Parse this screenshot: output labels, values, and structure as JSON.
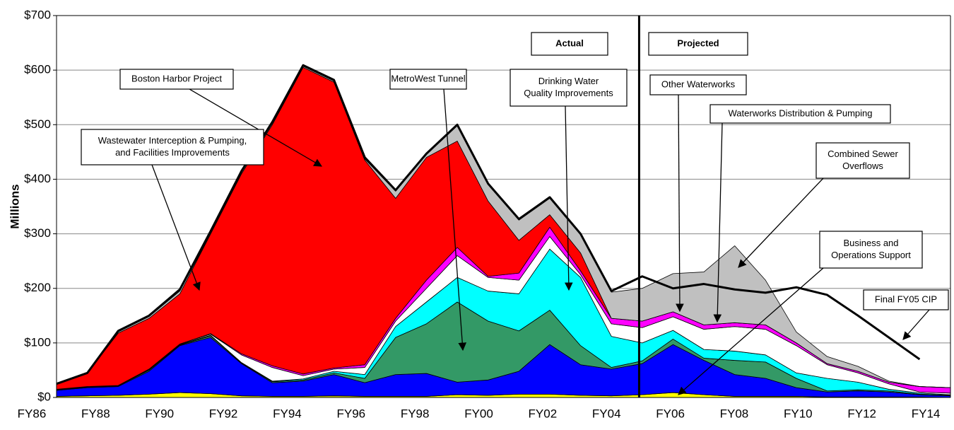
{
  "chart_data": {
    "type": "stacked_area",
    "y_label": "Millions",
    "categories": [
      "FY86",
      null,
      "FY88",
      null,
      "FY90",
      null,
      "FY92",
      null,
      "FY94",
      null,
      "FY96",
      null,
      "FY98",
      null,
      "FY00",
      null,
      "FY02",
      null,
      "FY04",
      null,
      "FY06",
      null,
      "FY08",
      null,
      "FY10",
      null,
      "FY12",
      null,
      "FY14",
      null
    ],
    "ylim": [
      0,
      700
    ],
    "yticks": [
      {
        "value": 0,
        "label": "$0"
      },
      {
        "value": 100,
        "label": "$100"
      },
      {
        "value": 200,
        "label": "$200"
      },
      {
        "value": 300,
        "label": "$300"
      },
      {
        "value": 400,
        "label": "$400"
      },
      {
        "value": 500,
        "label": "$500"
      },
      {
        "value": 600,
        "label": "$600"
      },
      {
        "value": 700,
        "label": "$700"
      }
    ],
    "grid": true,
    "series": [
      {
        "color": "#ffff00",
        "values": [
          2,
          3,
          4,
          6,
          9,
          7,
          3,
          2,
          2,
          3,
          2,
          2,
          2,
          5,
          4,
          6,
          6,
          4,
          3,
          5,
          9,
          5,
          2,
          2,
          2,
          1,
          1,
          1,
          1,
          0
        ]
      },
      {
        "color": "#0000ff",
        "values": [
          11,
          15,
          16,
          42,
          86,
          103,
          59,
          25,
          28,
          39,
          25,
          40,
          42,
          23,
          28,
          42,
          91,
          56,
          49,
          57,
          88,
          63,
          40,
          33,
          16,
          9,
          11,
          9,
          4,
          3
        ]
      },
      {
        "color": "#339966",
        "values": [
          1,
          1,
          1,
          2,
          1,
          3,
          1,
          2,
          2,
          3,
          8,
          68,
          91,
          147,
          108,
          74,
          63,
          35,
          3,
          5,
          10,
          4,
          26,
          30,
          17,
          2,
          2,
          2,
          1,
          1
        ]
      },
      {
        "color": "#00ffff",
        "values": [
          0,
          0,
          0,
          1,
          1,
          1,
          1,
          1,
          2,
          3,
          7,
          20,
          40,
          45,
          55,
          68,
          112,
          125,
          57,
          33,
          16,
          16,
          17,
          13,
          10,
          23,
          14,
          3,
          2,
          1
        ]
      },
      {
        "color": "#ffffff",
        "values": [
          1,
          1,
          1,
          1,
          1,
          2,
          14,
          25,
          6,
          4,
          13,
          10,
          25,
          40,
          25,
          25,
          23,
          5,
          23,
          28,
          25,
          37,
          45,
          47,
          50,
          25,
          17,
          10,
          2,
          3
        ]
      },
      {
        "color": "#ff00ff",
        "values": [
          0,
          0,
          0,
          0,
          0,
          1,
          2,
          3,
          3,
          2,
          5,
          5,
          15,
          15,
          2,
          13,
          17,
          7,
          10,
          12,
          9,
          8,
          7,
          8,
          5,
          2,
          3,
          3,
          10,
          10
        ]
      },
      {
        "color": "#ff0000",
        "values": [
          10,
          25,
          96,
          93,
          92,
          183,
          330,
          442,
          562,
          524,
          375,
          220,
          225,
          195,
          138,
          60,
          23,
          33,
          0,
          0,
          0,
          0,
          0,
          0,
          0,
          0,
          0,
          0,
          0,
          0
        ]
      },
      {
        "color": "#c0c0c0",
        "values": [
          0,
          0,
          2,
          3,
          5,
          0,
          0,
          0,
          2,
          2,
          2,
          13,
          5,
          28,
          30,
          37,
          30,
          33,
          48,
          60,
          70,
          97,
          141,
          82,
          20,
          13,
          9,
          2,
          0,
          0
        ]
      }
    ],
    "line": {
      "color": "#000000",
      "values": [
        25,
        45,
        122,
        150,
        198,
        305,
        415,
        505,
        609,
        582,
        440,
        380,
        447,
        500,
        392,
        327,
        367,
        300,
        195,
        222,
        200,
        208,
        198,
        192,
        202,
        188,
        150,
        110,
        70,
        null
      ]
    },
    "annotations": [
      {
        "lines": [
          "Actual"
        ],
        "bold": true
      },
      {
        "lines": [
          "Projected"
        ],
        "bold": true
      },
      {
        "lines": [
          "Boston Harbor Project"
        ]
      },
      {
        "lines": [
          "Wastewater Interception & Pumping,",
          "and Facilities Improvements"
        ]
      },
      {
        "lines": [
          "MetroWest Tunnel"
        ]
      },
      {
        "lines": [
          "Drinking Water",
          "Quality Improvements"
        ]
      },
      {
        "lines": [
          "Other Waterworks"
        ]
      },
      {
        "lines": [
          "Waterworks Distribution & Pumping"
        ]
      },
      {
        "lines": [
          "Combined Sewer",
          "Overflows"
        ]
      },
      {
        "lines": [
          "Business and",
          "Operations Support"
        ]
      },
      {
        "lines": [
          "Final FY05 CIP"
        ]
      }
    ]
  }
}
